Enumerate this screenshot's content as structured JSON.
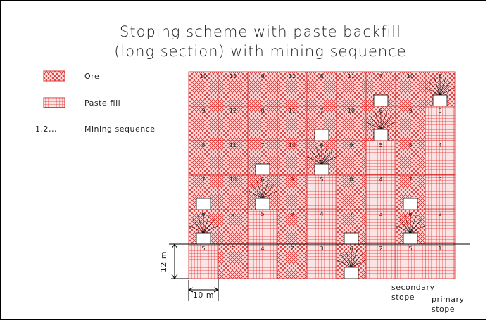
{
  "title": [
    "Stoping scheme with paste backfill",
    "(long section) with mining sequence"
  ],
  "legend": [
    {
      "symbol": "",
      "label": "Ore"
    },
    {
      "symbol": "",
      "label": "Paste fill"
    },
    {
      "symbol": "1,2,,,",
      "label": "Mining sequence"
    }
  ],
  "stopes": {
    "rows": [
      [
        10,
        13,
        9,
        12,
        8,
        11,
        7,
        10,
        6
      ],
      [
        9,
        12,
        8,
        11,
        7,
        10,
        6,
        9,
        5
      ],
      [
        8,
        11,
        7,
        10,
        6,
        9,
        5,
        8,
        4
      ],
      [
        7,
        10,
        6,
        9,
        5,
        8,
        4,
        7,
        3
      ],
      [
        6,
        9,
        5,
        8,
        4,
        7,
        3,
        6,
        2
      ],
      [
        5,
        8,
        4,
        7,
        3,
        6,
        2,
        5,
        1
      ]
    ]
  },
  "dimensions": {
    "height": "12 m",
    "width": "10 m"
  },
  "labels": {
    "secondary": "secondary\nstope",
    "primary": "primary\nstope"
  }
}
